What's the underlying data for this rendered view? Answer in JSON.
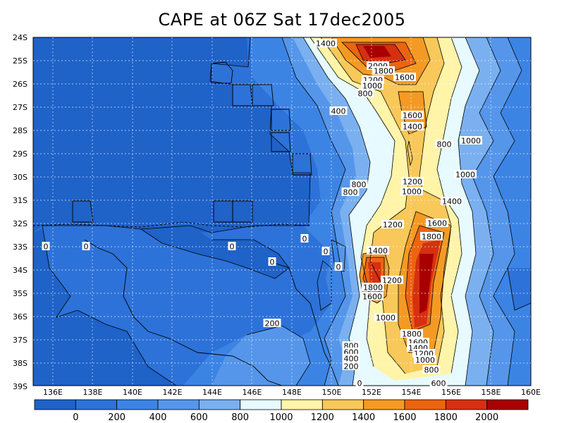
{
  "title": "CAPE at 06Z Sat 17dec2005",
  "axes": {
    "lon_labels": [
      "136E",
      "138E",
      "140E",
      "142E",
      "144E",
      "146E",
      "148E",
      "150E",
      "152E",
      "154E",
      "156E",
      "158E",
      "160E"
    ],
    "lat_labels": [
      "24S",
      "25S",
      "26S",
      "27S",
      "28S",
      "29S",
      "30S",
      "31S",
      "32S",
      "33S",
      "34S",
      "35S",
      "36S",
      "37S",
      "38S",
      "39S"
    ]
  },
  "contour_labels": [
    "1400",
    "2000",
    "1800",
    "1600",
    "1200",
    "1000",
    "800",
    "400",
    "1600",
    "1400",
    "800",
    "1000",
    "1200",
    "1000",
    "1000",
    "1400",
    "800",
    "800",
    "1600",
    "1200",
    "1800",
    "0",
    "0",
    "0",
    "0",
    "0",
    "0",
    "0",
    "1400",
    "1800",
    "1200",
    "1800",
    "1600",
    "1000",
    "200",
    "1800",
    "1600",
    "1400",
    "1200",
    "800",
    "600",
    "400",
    "200",
    "1000",
    "800",
    "600",
    "0"
  ],
  "colorbar": {
    "labels": [
      "0",
      "200",
      "400",
      "600",
      "800",
      "1000",
      "1200",
      "1400",
      "1600",
      "1800",
      "2000"
    ],
    "colors": [
      "#1f62c8",
      "#2d72d8",
      "#3c84e4",
      "#5596ea",
      "#7ab0f0",
      "#e6faff",
      "#fff4a8",
      "#f8c85a",
      "#f49a24",
      "#ec6410",
      "#d63010",
      "#a80000"
    ]
  },
  "chart_data": {
    "type": "heatmap",
    "title": "CAPE at 06Z Sat 17dec2005",
    "xrange": [
      135,
      160
    ],
    "yrange": [
      -39,
      -24
    ],
    "contour_levels": [
      0,
      200,
      400,
      600,
      800,
      1000,
      1200,
      1400,
      1600,
      1800,
      2000
    ],
    "max_cells": [
      {
        "lon": 152,
        "lat": -25,
        "value": 2000
      },
      {
        "lon": 154.5,
        "lat": -35,
        "value": 1800
      },
      {
        "lon": 152,
        "lat": -34,
        "value": 1800
      }
    ]
  }
}
